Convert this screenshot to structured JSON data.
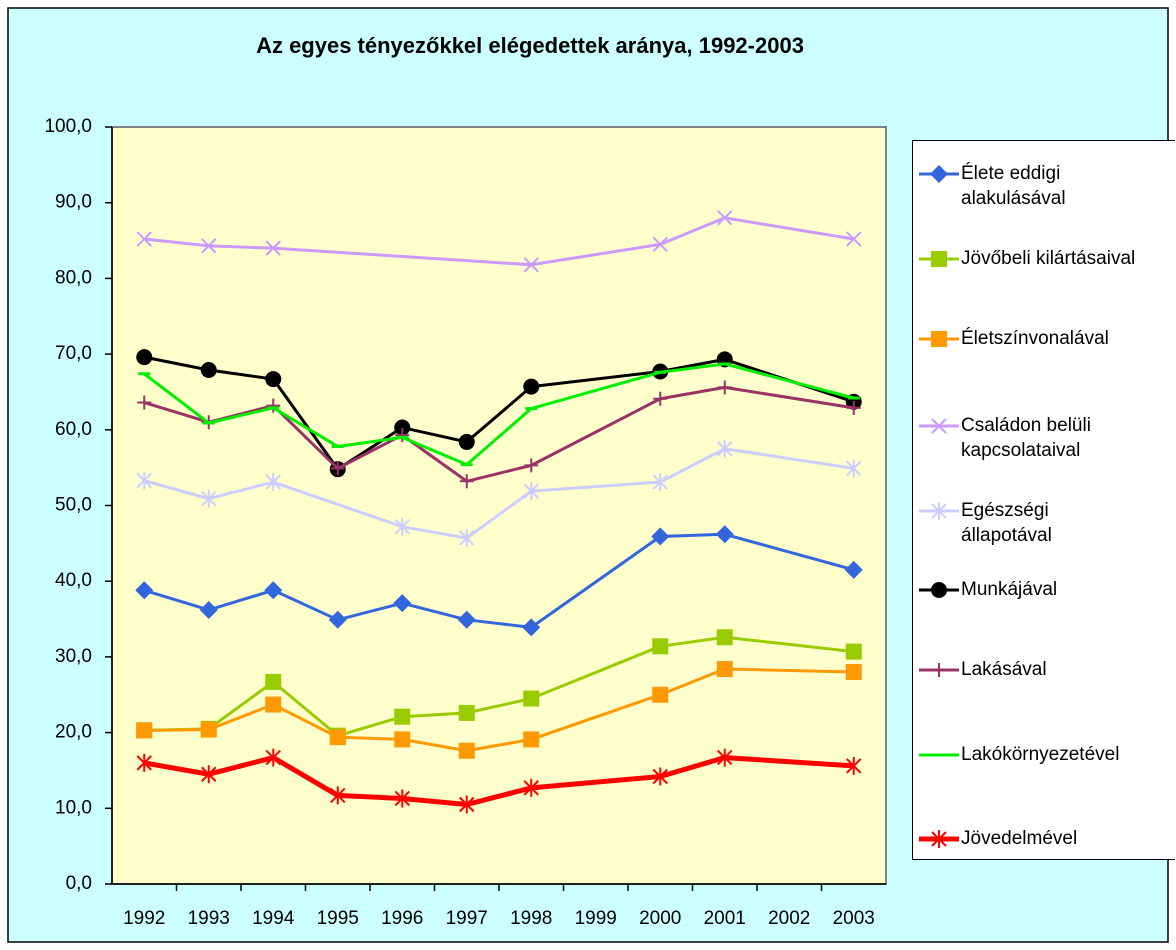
{
  "chart_data": {
    "type": "line",
    "title": "Az egyes tényezőkkel elégedettek aránya, 1992-2003",
    "categories": [
      "1992",
      "1993",
      "1994",
      "1995",
      "1996",
      "1997",
      "1998",
      "1999",
      "2000",
      "2001",
      "2002",
      "2003"
    ],
    "ylim": [
      0,
      100
    ],
    "yticks": [
      {
        "value": 0,
        "label": "0,0"
      },
      {
        "value": 10,
        "label": "10,0"
      },
      {
        "value": 20,
        "label": "20,0"
      },
      {
        "value": 30,
        "label": "30,0"
      },
      {
        "value": 40,
        "label": "40,0"
      },
      {
        "value": 50,
        "label": "50,0"
      },
      {
        "value": 60,
        "label": "60,0"
      },
      {
        "value": 70,
        "label": "70,0"
      },
      {
        "value": 80,
        "label": "80,0"
      },
      {
        "value": 90,
        "label": "90,0"
      },
      {
        "value": 100,
        "label": "100,0"
      }
    ],
    "grid": false,
    "connect_nulls": true,
    "legend": "right",
    "series": [
      {
        "name": "Élete eddigi alakulásával",
        "color": "#3366dd",
        "marker": "diamond",
        "values": [
          38.8,
          36.2,
          38.8,
          34.9,
          37.1,
          34.9,
          33.9,
          null,
          45.9,
          46.2,
          null,
          41.5
        ]
      },
      {
        "name": "Jövőbeli kilártásaival",
        "color": "#99cc00",
        "marker": "square",
        "values": [
          20.3,
          20.5,
          26.7,
          19.6,
          22.1,
          22.6,
          24.5,
          null,
          31.4,
          32.6,
          null,
          30.7
        ]
      },
      {
        "name": "Életszínvonalával",
        "color": "#ff9900",
        "marker": "square",
        "values": [
          20.3,
          20.4,
          23.7,
          19.4,
          19.1,
          17.6,
          19.1,
          null,
          25.0,
          28.4,
          null,
          28.0
        ]
      },
      {
        "name": "Családon belüli kapcsolataival",
        "color": "#cc99ff",
        "marker": "x",
        "values": [
          85.2,
          84.3,
          84.0,
          null,
          null,
          null,
          81.8,
          null,
          84.5,
          88.0,
          null,
          85.2
        ]
      },
      {
        "name": "Egészségi állapotával",
        "color": "#ccccff",
        "marker": "asterisk",
        "values": [
          53.3,
          50.9,
          53.1,
          null,
          47.2,
          45.7,
          51.9,
          null,
          53.1,
          57.5,
          null,
          54.9
        ]
      },
      {
        "name": "Munkájával",
        "color": "#000000",
        "marker": "circle",
        "values": [
          69.6,
          67.9,
          66.7,
          54.8,
          60.3,
          58.4,
          65.7,
          null,
          67.7,
          69.3,
          null,
          63.7
        ]
      },
      {
        "name": "Lakásával",
        "color": "#993366",
        "marker": "plus",
        "values": [
          63.6,
          61.0,
          63.2,
          54.9,
          59.3,
          53.2,
          55.3,
          null,
          64.1,
          65.6,
          null,
          62.9
        ]
      },
      {
        "name": "Lakókörnyezetével",
        "color": "#00ee00",
        "marker": "dash",
        "values": [
          67.4,
          60.9,
          62.9,
          57.8,
          59.0,
          55.4,
          62.8,
          null,
          67.6,
          68.7,
          null,
          64.2
        ]
      },
      {
        "name": "Jövedelmével",
        "color": "#ff0000",
        "marker": "asterisk",
        "width": 5,
        "values": [
          16.0,
          14.5,
          16.7,
          11.7,
          11.3,
          10.5,
          12.7,
          null,
          14.2,
          16.7,
          null,
          15.6
        ]
      }
    ]
  }
}
